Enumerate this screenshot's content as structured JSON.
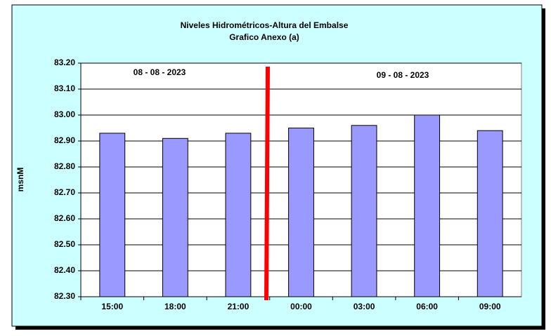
{
  "chart_data": {
    "type": "bar",
    "title": "Niveles Hidrométricos-Altura del Embalse",
    "subtitle": "Grafico Anexo (a)",
    "y_label": "msnM",
    "annotations": [
      "08 - 08 - 2023",
      "09 - 08 - 2023"
    ],
    "categories": [
      "15:00",
      "18:00",
      "21:00",
      "00:00",
      "03:00",
      "06:00",
      "09:00"
    ],
    "values": [
      82.93,
      82.91,
      82.93,
      82.95,
      82.96,
      83.0,
      82.94
    ],
    "color": "#9999ff",
    "ylim": [
      82.3,
      83.2
    ],
    "yticks": [
      {
        "value": 82.3,
        "label": "82.30"
      },
      {
        "value": 82.4,
        "label": "82.40"
      },
      {
        "value": 82.5,
        "label": "82.50"
      },
      {
        "value": 82.6,
        "label": "82.60"
      },
      {
        "value": 82.7,
        "label": "82.70"
      },
      {
        "value": 82.8,
        "label": "82.80"
      },
      {
        "value": 82.9,
        "label": "82.90"
      },
      {
        "value": 83.0,
        "label": "83.00"
      },
      {
        "value": 83.1,
        "label": "83.10"
      },
      {
        "value": 83.2,
        "label": "83.20"
      }
    ],
    "grid": true
  }
}
